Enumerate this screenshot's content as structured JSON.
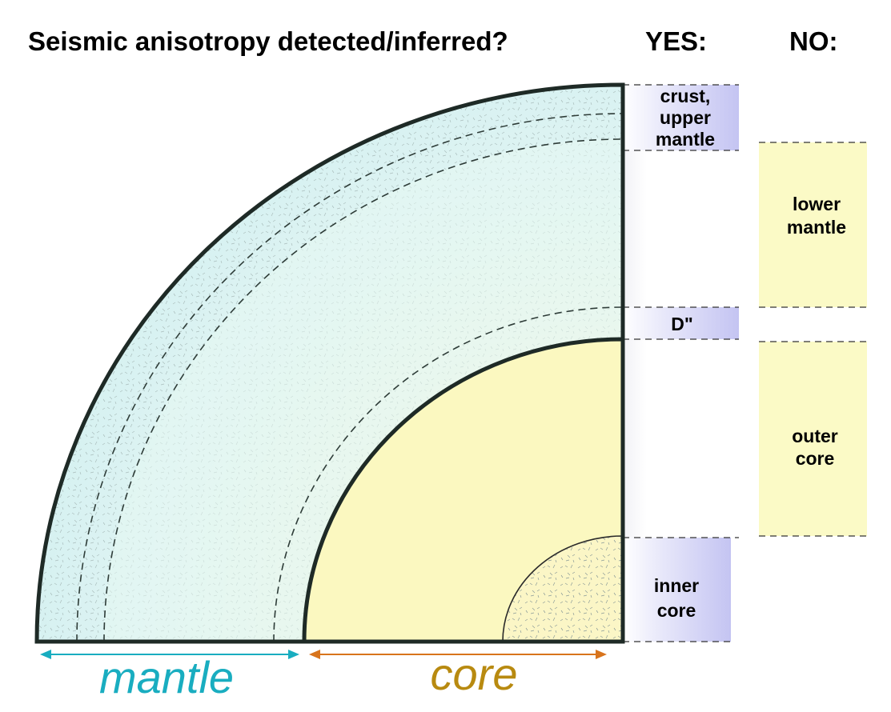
{
  "header": {
    "title": "Seismic anisotropy detected/inferred?",
    "yes_label": "YES:",
    "no_label": "NO:"
  },
  "yes_layers": [
    {
      "lines": [
        "crust,",
        "upper",
        "mantle"
      ]
    },
    {
      "lines": [
        "D\""
      ]
    },
    {
      "lines": [
        "inner",
        "core"
      ]
    }
  ],
  "no_layers": [
    {
      "lines": [
        "lower",
        "mantle"
      ]
    },
    {
      "lines": [
        "outer",
        "core"
      ]
    }
  ],
  "axis_labels": {
    "mantle": "mantle",
    "core": "core"
  },
  "colors": {
    "mantle_fill": "#e6f6f3",
    "core_fill": "#fbf8c0",
    "yes_band": "#c8c8f4",
    "no_band": "#fbfac6",
    "mantle_label": "#19adc0",
    "core_label": "#b88a10",
    "mantle_arrow": "#19adc0",
    "core_arrow": "#d8741c"
  }
}
